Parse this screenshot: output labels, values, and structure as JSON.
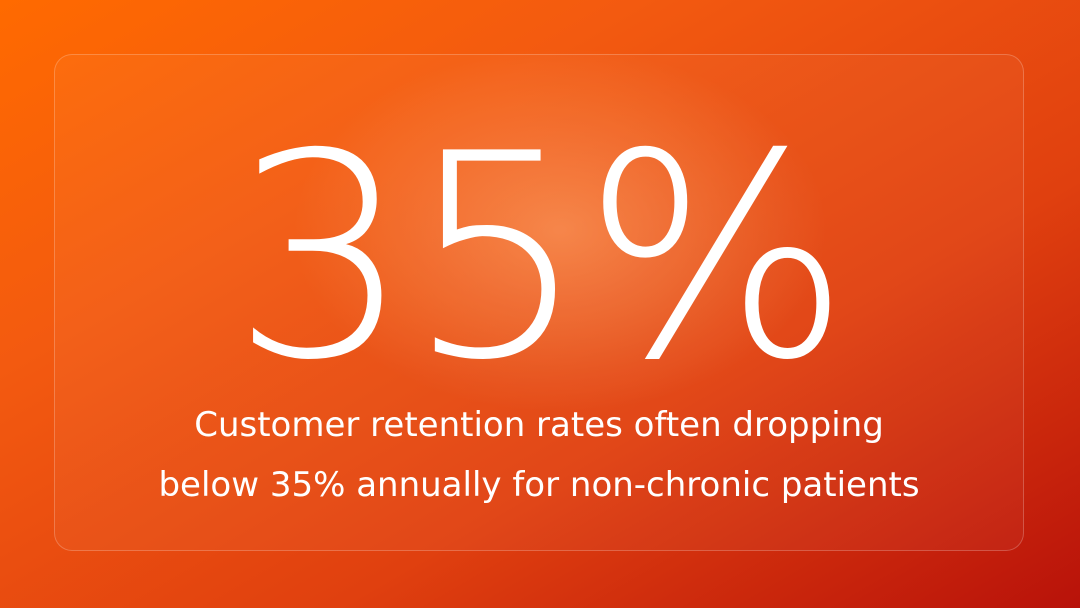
{
  "stat": {
    "value": "35%",
    "description": [
      "Customer retention rates often dropping",
      "below 35% annually for non-chronic patients"
    ]
  }
}
